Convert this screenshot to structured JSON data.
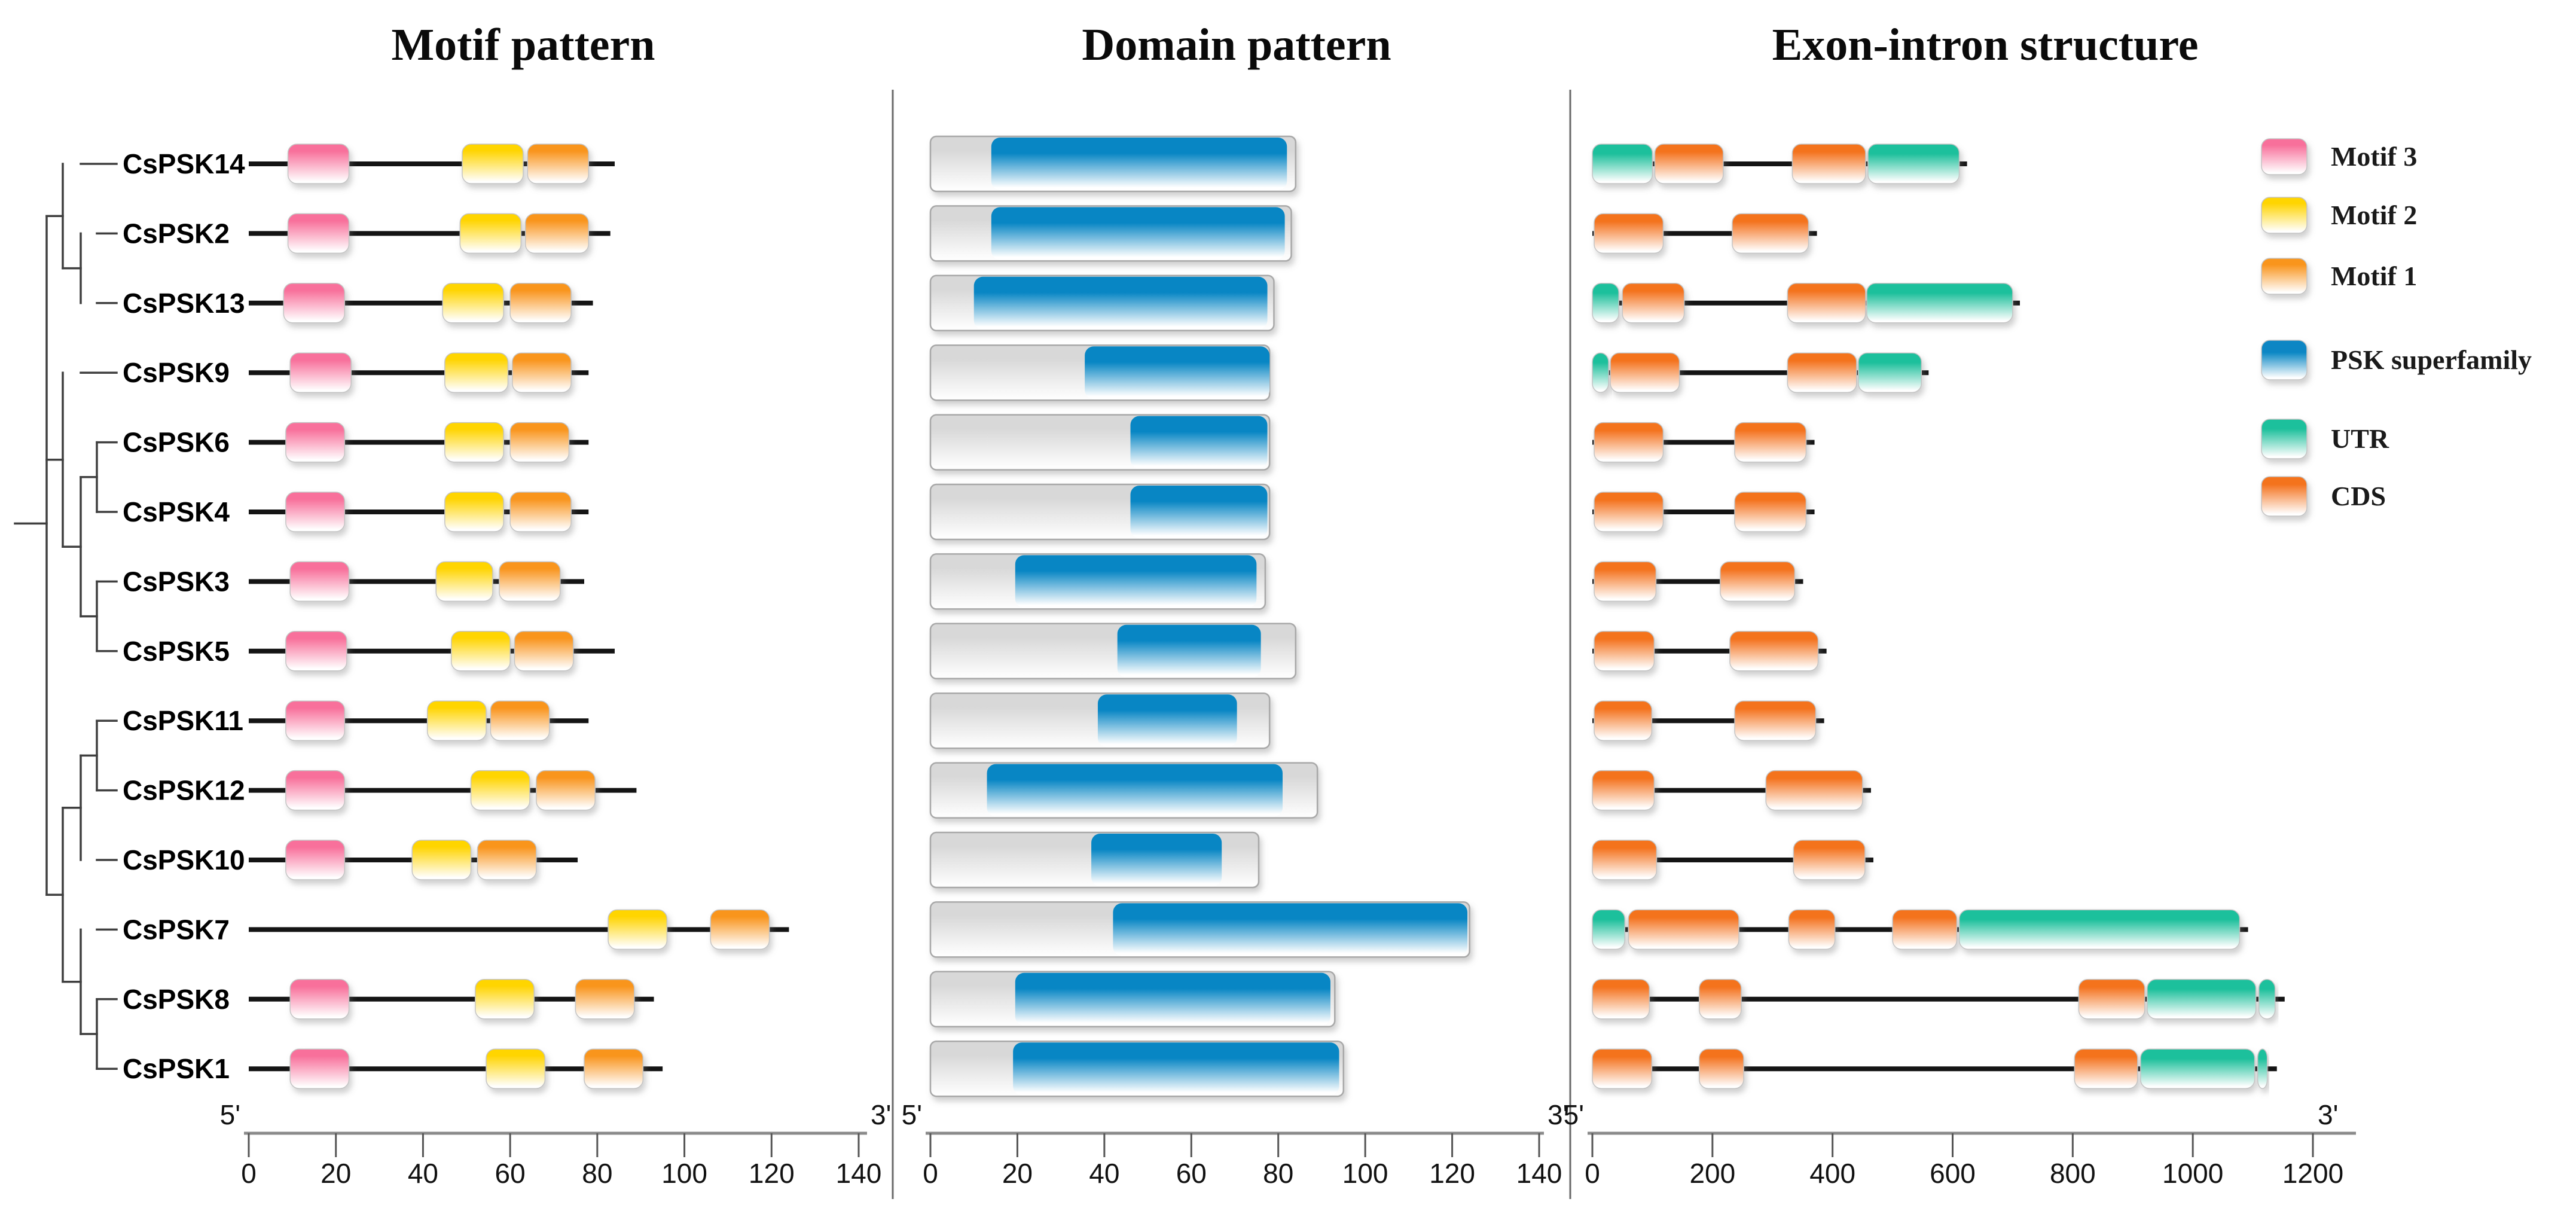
{
  "chart_data": {
    "type": "gene-structure-figure",
    "description_visible_text_only": true,
    "panels": [
      {
        "id": "motif",
        "title": "Motif pattern",
        "axis": {
          "units": "aa",
          "min": 0,
          "max": 140,
          "ticks": [
            0,
            20,
            40,
            60,
            80,
            100,
            120,
            140
          ],
          "start_label": "5'",
          "end_label": "3'"
        }
      },
      {
        "id": "domain",
        "title": "Domain pattern",
        "axis": {
          "units": "aa",
          "min": 0,
          "max": 140,
          "ticks": [
            0,
            20,
            40,
            60,
            80,
            100,
            120,
            140
          ],
          "start_label": "5'",
          "end_label": "3'"
        }
      },
      {
        "id": "exon",
        "title": "Exon-intron structure",
        "axis": {
          "units": "bp",
          "min": 0,
          "max": 1200,
          "ticks": [
            0,
            200,
            400,
            600,
            800,
            1000,
            1200
          ],
          "start_label": "5'",
          "end_label": "3'"
        }
      }
    ],
    "legend": [
      {
        "id": "motif3",
        "label": "Motif 3"
      },
      {
        "id": "motif2",
        "label": "Motif 2"
      },
      {
        "id": "motif1",
        "label": "Motif 1"
      },
      {
        "id": "psk",
        "label": "PSK superfamily"
      },
      {
        "id": "utr",
        "label": "UTR"
      },
      {
        "id": "cds",
        "label": "CDS"
      }
    ],
    "colors": {
      "motif3": "#F8709B",
      "motif2": "#FFD505",
      "motif1": "#F9951E",
      "psk": "#0886C4",
      "utr": "#1FC09C",
      "cds": "#F4731F",
      "protein_bar": "#D8D8D8",
      "backbone": "#141414",
      "tree": "#3f3f3f",
      "axis_line": "#8a8a8a",
      "axis_tick": "#555555",
      "box_stroke": "#c4c4c4",
      "bar_stroke": "#a8a8a8",
      "separator": "#6a6a6a",
      "text": "#000000"
    },
    "tree": {
      "children": [
        {
          "children": [
            {
              "leaf": "CsPSK14"
            },
            {
              "children": [
                {
                  "leaf": "CsPSK2"
                },
                {
                  "leaf": "CsPSK13"
                }
              ]
            }
          ]
        },
        {
          "children": [
            {
              "leaf": "CsPSK9"
            },
            {
              "children": [
                {
                  "children": [
                    {
                      "leaf": "CsPSK6"
                    },
                    {
                      "leaf": "CsPSK4"
                    }
                  ]
                },
                {
                  "children": [
                    {
                      "leaf": "CsPSK3"
                    },
                    {
                      "leaf": "CsPSK5"
                    }
                  ]
                }
              ]
            }
          ]
        },
        {
          "children": [
            {
              "children": [
                {
                  "children": [
                    {
                      "leaf": "CsPSK11"
                    },
                    {
                      "leaf": "CsPSK12"
                    }
                  ]
                },
                {
                  "leaf": "CsPSK10"
                }
              ]
            },
            {
              "children": [
                {
                  "leaf": "CsPSK7"
                },
                {
                  "children": [
                    {
                      "leaf": "CsPSK8"
                    },
                    {
                      "leaf": "CsPSK1"
                    }
                  ]
                }
              ]
            }
          ]
        }
      ]
    },
    "genes": [
      {
        "name": "CsPSK14",
        "protein_length": 84,
        "motifs": [
          {
            "motif": "motif3",
            "start": 9,
            "end": 23
          },
          {
            "motif": "motif2",
            "start": 49,
            "end": 63
          },
          {
            "motif": "motif1",
            "start": 64,
            "end": 78
          }
        ],
        "domains": [
          {
            "domain": "psk",
            "start": 14,
            "end": 82
          }
        ],
        "gene_length": 616,
        "exons": [
          {
            "type": "utr",
            "start": 0,
            "end": 100
          },
          {
            "type": "cds",
            "start": 104,
            "end": 218
          },
          {
            "type": "cds",
            "start": 333,
            "end": 455
          },
          {
            "type": "utr",
            "start": 459,
            "end": 611
          }
        ]
      },
      {
        "name": "CsPSK2",
        "protein_length": 83,
        "motifs": [
          {
            "motif": "motif3",
            "start": 9,
            "end": 23
          },
          {
            "motif": "motif2",
            "start": 48.5,
            "end": 62.5
          },
          {
            "motif": "motif1",
            "start": 63.5,
            "end": 78
          }
        ],
        "domains": [
          {
            "domain": "psk",
            "start": 14,
            "end": 81.5
          }
        ],
        "gene_length": 366,
        "exons": [
          {
            "type": "cds",
            "start": 3,
            "end": 118
          },
          {
            "type": "cds",
            "start": 233,
            "end": 360
          }
        ]
      },
      {
        "name": "CsPSK13",
        "protein_length": 79,
        "motifs": [
          {
            "motif": "motif3",
            "start": 8,
            "end": 22
          },
          {
            "motif": "motif2",
            "start": 44.5,
            "end": 58.5
          },
          {
            "motif": "motif1",
            "start": 60,
            "end": 74
          }
        ],
        "domains": [
          {
            "domain": "psk",
            "start": 10,
            "end": 77.5
          }
        ],
        "gene_length": 704,
        "exons": [
          {
            "type": "utr",
            "start": 0,
            "end": 44
          },
          {
            "type": "cds",
            "start": 50,
            "end": 153
          },
          {
            "type": "cds",
            "start": 325,
            "end": 455
          },
          {
            "type": "utr",
            "start": 457,
            "end": 700
          }
        ]
      },
      {
        "name": "CsPSK9",
        "protein_length": 78,
        "motifs": [
          {
            "motif": "motif3",
            "start": 9.5,
            "end": 23.5
          },
          {
            "motif": "motif2",
            "start": 45,
            "end": 59.5
          },
          {
            "motif": "motif1",
            "start": 60.5,
            "end": 74
          }
        ],
        "domains": [
          {
            "domain": "psk",
            "start": 35.5,
            "end": 78
          }
        ],
        "gene_length": 552,
        "exons": [
          {
            "type": "utr",
            "start": 0,
            "end": 27
          },
          {
            "type": "cds",
            "start": 30,
            "end": 145
          },
          {
            "type": "cds",
            "start": 325,
            "end": 440
          },
          {
            "type": "utr",
            "start": 443,
            "end": 548
          }
        ]
      },
      {
        "name": "CsPSK6",
        "protein_length": 78,
        "motifs": [
          {
            "motif": "motif3",
            "start": 8.5,
            "end": 22
          },
          {
            "motif": "motif2",
            "start": 45,
            "end": 58.5
          },
          {
            "motif": "motif1",
            "start": 60,
            "end": 73.5
          }
        ],
        "domains": [
          {
            "domain": "psk",
            "start": 46,
            "end": 77.5
          }
        ],
        "gene_length": 362,
        "exons": [
          {
            "type": "cds",
            "start": 3,
            "end": 118
          },
          {
            "type": "cds",
            "start": 237,
            "end": 356
          }
        ]
      },
      {
        "name": "CsPSK4",
        "protein_length": 78,
        "motifs": [
          {
            "motif": "motif3",
            "start": 8.5,
            "end": 22
          },
          {
            "motif": "motif2",
            "start": 45,
            "end": 58.5
          },
          {
            "motif": "motif1",
            "start": 60,
            "end": 74
          }
        ],
        "domains": [
          {
            "domain": "psk",
            "start": 46,
            "end": 77.5
          }
        ],
        "gene_length": 362,
        "exons": [
          {
            "type": "cds",
            "start": 3,
            "end": 118
          },
          {
            "type": "cds",
            "start": 237,
            "end": 356
          }
        ]
      },
      {
        "name": "CsPSK3",
        "protein_length": 77,
        "motifs": [
          {
            "motif": "motif3",
            "start": 9.5,
            "end": 23
          },
          {
            "motif": "motif2",
            "start": 43,
            "end": 56
          },
          {
            "motif": "motif1",
            "start": 57.5,
            "end": 71.5
          }
        ],
        "domains": [
          {
            "domain": "psk",
            "start": 19.5,
            "end": 75
          }
        ],
        "gene_length": 343,
        "exons": [
          {
            "type": "cds",
            "start": 3,
            "end": 106
          },
          {
            "type": "cds",
            "start": 213,
            "end": 337
          }
        ]
      },
      {
        "name": "CsPSK5",
        "protein_length": 84,
        "motifs": [
          {
            "motif": "motif3",
            "start": 8.5,
            "end": 22.5
          },
          {
            "motif": "motif2",
            "start": 46.5,
            "end": 60
          },
          {
            "motif": "motif1",
            "start": 61,
            "end": 74.5
          }
        ],
        "domains": [
          {
            "domain": "psk",
            "start": 43,
            "end": 76
          }
        ],
        "gene_length": 382,
        "exons": [
          {
            "type": "cds",
            "start": 3,
            "end": 103
          },
          {
            "type": "cds",
            "start": 229,
            "end": 376
          }
        ]
      },
      {
        "name": "CsPSK11",
        "protein_length": 78,
        "motifs": [
          {
            "motif": "motif3",
            "start": 8.5,
            "end": 22
          },
          {
            "motif": "motif2",
            "start": 41,
            "end": 54.5
          },
          {
            "motif": "motif1",
            "start": 55.5,
            "end": 69
          }
        ],
        "domains": [
          {
            "domain": "psk",
            "start": 38.5,
            "end": 70.5
          }
        ],
        "gene_length": 378,
        "exons": [
          {
            "type": "cds",
            "start": 3,
            "end": 99
          },
          {
            "type": "cds",
            "start": 237,
            "end": 372
          }
        ]
      },
      {
        "name": "CsPSK12",
        "protein_length": 89,
        "motifs": [
          {
            "motif": "motif3",
            "start": 8.5,
            "end": 22
          },
          {
            "motif": "motif2",
            "start": 51,
            "end": 64.5
          },
          {
            "motif": "motif1",
            "start": 66,
            "end": 79.5
          }
        ],
        "domains": [
          {
            "domain": "psk",
            "start": 13,
            "end": 81
          }
        ],
        "gene_length": 456,
        "exons": [
          {
            "type": "cds",
            "start": 0,
            "end": 103
          },
          {
            "type": "cds",
            "start": 289,
            "end": 450
          }
        ]
      },
      {
        "name": "CsPSK10",
        "protein_length": 75.5,
        "motifs": [
          {
            "motif": "motif3",
            "start": 8.5,
            "end": 22
          },
          {
            "motif": "motif2",
            "start": 37.5,
            "end": 51
          },
          {
            "motif": "motif1",
            "start": 52.5,
            "end": 66
          }
        ],
        "domains": [
          {
            "domain": "psk",
            "start": 37,
            "end": 67
          }
        ],
        "gene_length": 460,
        "exons": [
          {
            "type": "cds",
            "start": 0,
            "end": 107
          },
          {
            "type": "cds",
            "start": 335,
            "end": 454
          }
        ]
      },
      {
        "name": "CsPSK7",
        "protein_length": 124,
        "motifs": [
          {
            "motif": "motif2",
            "start": 82.5,
            "end": 96
          },
          {
            "motif": "motif1",
            "start": 106,
            "end": 119.5
          }
        ],
        "domains": [
          {
            "domain": "psk",
            "start": 42,
            "end": 123.5
          }
        ],
        "gene_length": 1084,
        "exons": [
          {
            "type": "utr",
            "start": 0,
            "end": 54
          },
          {
            "type": "cds",
            "start": 60,
            "end": 244
          },
          {
            "type": "cds",
            "start": 327,
            "end": 404
          },
          {
            "type": "cds",
            "start": 500,
            "end": 607
          },
          {
            "type": "utr",
            "start": 611,
            "end": 1078
          }
        ]
      },
      {
        "name": "CsPSK8",
        "protein_length": 93,
        "motifs": [
          {
            "motif": "motif3",
            "start": 9.5,
            "end": 23
          },
          {
            "motif": "motif2",
            "start": 52,
            "end": 65.5
          },
          {
            "motif": "motif1",
            "start": 75,
            "end": 88.5
          }
        ],
        "domains": [
          {
            "domain": "psk",
            "start": 19.5,
            "end": 92
          }
        ],
        "gene_length": 1145,
        "exons": [
          {
            "type": "cds",
            "start": 0,
            "end": 95
          },
          {
            "type": "cds",
            "start": 178,
            "end": 248
          },
          {
            "type": "cds",
            "start": 810,
            "end": 920
          },
          {
            "type": "utr",
            "start": 924,
            "end": 1105
          },
          {
            "type": "utr",
            "start": 1110,
            "end": 1137
          }
        ]
      },
      {
        "name": "CsPSK1",
        "protein_length": 95,
        "motifs": [
          {
            "motif": "motif3",
            "start": 9.5,
            "end": 23
          },
          {
            "motif": "motif2",
            "start": 54.5,
            "end": 68
          },
          {
            "motif": "motif1",
            "start": 77,
            "end": 90.5
          }
        ],
        "domains": [
          {
            "domain": "psk",
            "start": 19,
            "end": 94
          }
        ],
        "gene_length": 1132,
        "exons": [
          {
            "type": "cds",
            "start": 0,
            "end": 99
          },
          {
            "type": "cds",
            "start": 178,
            "end": 252
          },
          {
            "type": "cds",
            "start": 803,
            "end": 908
          },
          {
            "type": "utr",
            "start": 913,
            "end": 1103
          },
          {
            "type": "utr",
            "start": 1108,
            "end": 1124
          }
        ]
      }
    ]
  }
}
